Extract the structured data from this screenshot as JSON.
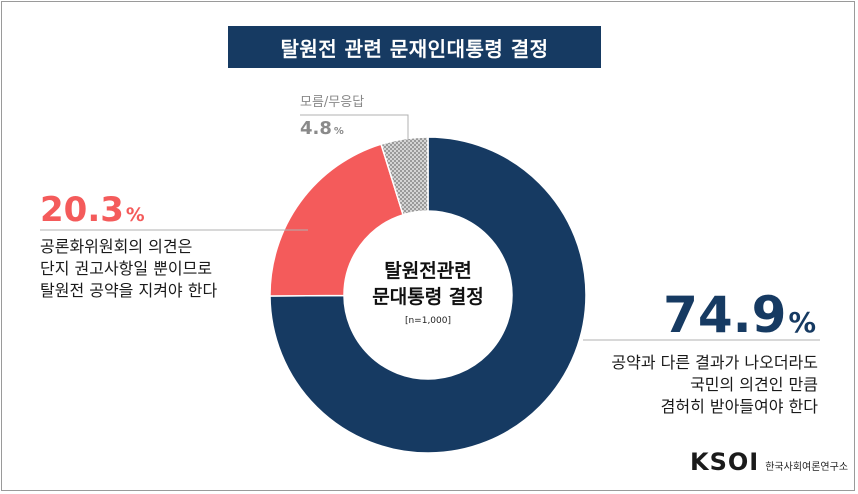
{
  "title": "탈원전 관련 문재인대통령 결정",
  "center": {
    "title_line1": "탈원전관련",
    "title_line2": "문대통령 결정",
    "n": "[n=1,000]"
  },
  "labels": {
    "a": {
      "value": "74.9",
      "sign": "%",
      "desc": [
        "공약과 다른 결과가 나오더라도",
        "국민의 의견인 만큼",
        "겸허히 받아들여야 한다"
      ]
    },
    "b": {
      "value": "20.3",
      "sign": "%",
      "desc": [
        "공론화위원회의 의견은",
        "단지 권고사항일 뿐이므로",
        "탈원전 공약을 지켜야 한다"
      ]
    },
    "c": {
      "name": "모름/무응답",
      "value": "4.8",
      "sign": "%"
    }
  },
  "logo": {
    "mark": "KSOI",
    "text": "한국사회여론연구소"
  },
  "colors": {
    "a": "#163a62",
    "b": "#f45b5b",
    "c": "#8a8a8a",
    "leader": "#b0b0b0"
  },
  "chart_data": {
    "type": "pie",
    "donut": true,
    "n": 1000,
    "slices": [
      {
        "label": "공약과 다른 결과가 나오더라도 국민의 의견인 만큼 겸허히 받아들여야 한다",
        "value": 74.9
      },
      {
        "label": "공론화위원회의 의견은 단지 권고사항일 뿐이므로 탈원전 공약을 지켜야 한다",
        "value": 20.3
      },
      {
        "label": "모름/무응답",
        "value": 4.8
      }
    ]
  }
}
